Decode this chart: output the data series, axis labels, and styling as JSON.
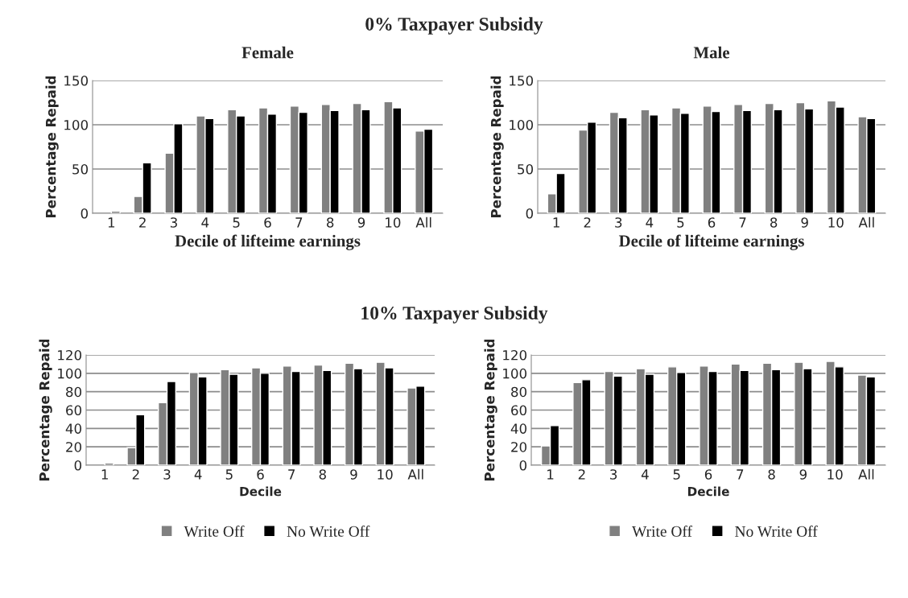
{
  "chart_data": [
    {
      "type": "bar",
      "title": "Female",
      "annotations": [
        "0% Taxpayer Subsidy"
      ],
      "xlabel": "Decile of lifteime earnings",
      "ylabel": "Percentage Repaid",
      "categories": [
        "1",
        "2",
        "3",
        "4",
        "5",
        "6",
        "7",
        "8",
        "9",
        "10",
        "All"
      ],
      "ylim": [
        0,
        150
      ],
      "yticks": [
        0,
        50,
        100,
        150
      ],
      "grid": "y",
      "legend": false,
      "series": [
        {
          "color": "#808080",
          "values": [
            null,
            19,
            68,
            110,
            117,
            119,
            121,
            123,
            124,
            126,
            93
          ]
        },
        {
          "color": "#000000",
          "values": [
            2,
            57,
            101,
            107,
            110,
            112,
            114,
            116,
            117,
            119,
            95
          ]
        }
      ]
    },
    {
      "type": "bar",
      "title": "Male",
      "xlabel": "Decile of lifteime earnings",
      "ylabel": "Percentage Repaid",
      "categories": [
        "1",
        "2",
        "3",
        "4",
        "5",
        "6",
        "7",
        "8",
        "9",
        "10",
        "All"
      ],
      "ylim": [
        0,
        150
      ],
      "yticks": [
        0,
        50,
        100,
        150
      ],
      "grid": "y",
      "legend": false,
      "series": [
        {
          "color": "#808080",
          "values": [
            22,
            94,
            114,
            117,
            119,
            121,
            123,
            124,
            125,
            127,
            109
          ]
        },
        {
          "color": "#000000",
          "values": [
            45,
            103,
            108,
            111,
            113,
            115,
            116,
            117,
            118,
            120,
            107
          ]
        }
      ]
    },
    {
      "type": "bar",
      "annotations": [
        "10% Taxpayer Subsidy"
      ],
      "xlabel": "Decile",
      "ylabel": "Percentage Repaid",
      "categories": [
        "1",
        "2",
        "3",
        "4",
        "5",
        "6",
        "7",
        "8",
        "9",
        "10",
        "All"
      ],
      "ylim": [
        0,
        120
      ],
      "yticks": [
        0,
        20,
        40,
        60,
        80,
        100,
        120
      ],
      "grid": "y",
      "legend": "bottom",
      "series": [
        {
          "name": "Write Off",
          "color": "#808080",
          "values": [
            null,
            19,
            68,
            101,
            104,
            106,
            108,
            109,
            111,
            112,
            84
          ]
        },
        {
          "name": "No Write Off",
          "color": "#000000",
          "values": [
            2,
            55,
            91,
            96,
            99,
            100,
            102,
            103,
            105,
            106,
            86
          ]
        }
      ]
    },
    {
      "type": "bar",
      "xlabel": "Decile",
      "ylabel": "Percentage Repaid",
      "categories": [
        "1",
        "2",
        "3",
        "4",
        "5",
        "6",
        "7",
        "8",
        "9",
        "10",
        "All"
      ],
      "ylim": [
        0,
        120
      ],
      "yticks": [
        0,
        20,
        40,
        60,
        80,
        100,
        120
      ],
      "grid": "y",
      "legend": "bottom",
      "series": [
        {
          "name": "Write Off",
          "color": "#808080",
          "values": [
            21,
            90,
            102,
            105,
            107,
            108,
            110,
            111,
            112,
            113,
            98
          ]
        },
        {
          "name": "No Write Off",
          "color": "#000000",
          "values": [
            43,
            93,
            97,
            99,
            101,
            102,
            103,
            104,
            105,
            107,
            96
          ]
        }
      ]
    }
  ]
}
